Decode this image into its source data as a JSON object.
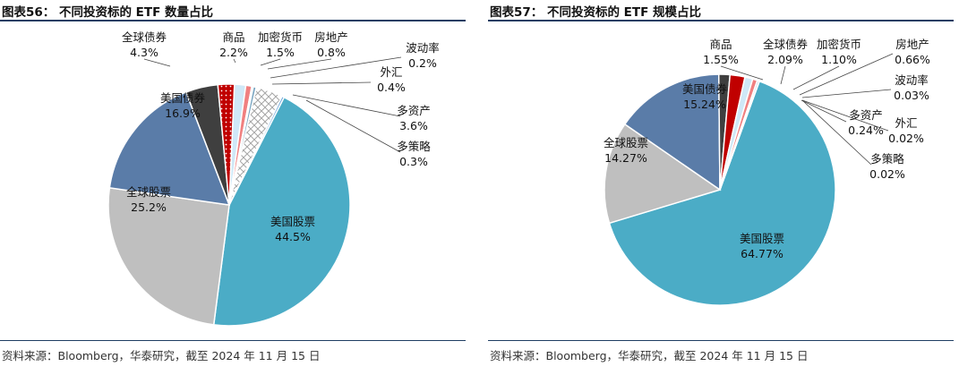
{
  "chart_data": [
    {
      "type": "pie",
      "title": "图表56： 不同投资标的 ETF 数量占比",
      "source": "资料来源：Bloomberg，华泰研究，截至 2024 年 11 月 15 日",
      "unit": "%",
      "slices": [
        {
          "name": "美国股票",
          "value": 44.5,
          "label": "44.5%",
          "color": "#4bacc6"
        },
        {
          "name": "全球股票",
          "value": 25.2,
          "label": "25.2%",
          "color": "#bfbfbf"
        },
        {
          "name": "美国债券",
          "value": 16.9,
          "label": "16.9%",
          "color": "#5a7ca8"
        },
        {
          "name": "全球债券",
          "value": 4.3,
          "label": "4.3%",
          "color": "#3f3f3f"
        },
        {
          "name": "商品",
          "value": 2.2,
          "label": "2.2%",
          "color": "#c00000",
          "pattern": "dots"
        },
        {
          "name": "加密货币",
          "value": 1.5,
          "label": "1.5%",
          "color": "#cfe8f7"
        },
        {
          "name": "房地产",
          "value": 0.8,
          "label": "0.8%",
          "color": "#f08080"
        },
        {
          "name": "波动率",
          "value": 0.2,
          "label": "0.2%",
          "color": "#9ecae1"
        },
        {
          "name": "外汇",
          "value": 0.4,
          "label": "0.4%",
          "color": "#7aa6c2"
        },
        {
          "name": "多资产",
          "value": 3.6,
          "label": "3.6%",
          "color": "#ffffff",
          "pattern": "diamond"
        },
        {
          "name": "多策略",
          "value": 0.3,
          "label": "0.3%",
          "color": "#6fa8dc"
        }
      ]
    },
    {
      "type": "pie",
      "title": "图表57： 不同投资标的 ETF 规模占比",
      "source": "资料来源：Bloomberg，华泰研究，截至 2024 年 11 月 15 日",
      "unit": "%",
      "slices": [
        {
          "name": "美国股票",
          "value": 64.77,
          "label": "64.77%",
          "color": "#4bacc6"
        },
        {
          "name": "全球股票",
          "value": 14.27,
          "label": "14.27%",
          "color": "#bfbfbf"
        },
        {
          "name": "美国债券",
          "value": 15.24,
          "label": "15.24%",
          "color": "#5a7ca8"
        },
        {
          "name": "商品",
          "value": 1.55,
          "label": "1.55%",
          "color": "#3f3f3f"
        },
        {
          "name": "全球债券",
          "value": 2.09,
          "label": "2.09%",
          "color": "#c00000"
        },
        {
          "name": "加密货币",
          "value": 1.1,
          "label": "1.10%",
          "color": "#cfe8f7"
        },
        {
          "name": "房地产",
          "value": 0.66,
          "label": "0.66%",
          "color": "#f08080"
        },
        {
          "name": "波动率",
          "value": 0.03,
          "label": "0.03%",
          "color": "#9ecae1"
        },
        {
          "name": "多资产",
          "value": 0.24,
          "label": "0.24%",
          "color": "#8eb4d0"
        },
        {
          "name": "外汇",
          "value": 0.02,
          "label": "0.02%",
          "color": "#7aa6c2"
        },
        {
          "name": "多策略",
          "value": 0.02,
          "label": "0.02%",
          "color": "#6fa8dc"
        }
      ]
    }
  ]
}
